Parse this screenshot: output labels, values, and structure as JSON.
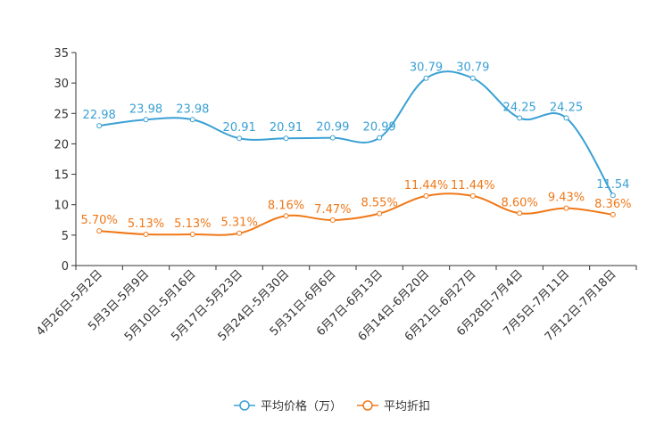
{
  "chart_data": {
    "type": "line",
    "categories": [
      "4月26日-5月2日",
      "5月3日-5月9日",
      "5月10日-5月16日",
      "5月17日-5月23日",
      "5月24日-5月30日",
      "5月31日-6月6日",
      "6月7日-6月13日",
      "6月14日-6月20日",
      "6月21日-6月27日",
      "6月28日-7月4日",
      "7月5日-7月11日",
      "7月12日-7月18日"
    ],
    "ylim": [
      0,
      35
    ],
    "yticks": [
      0,
      5,
      10,
      15,
      20,
      25,
      30,
      35
    ],
    "series": [
      {
        "name": "平均价格（万）",
        "color": "#3aa0d4",
        "values": [
          22.98,
          23.98,
          23.98,
          20.91,
          20.91,
          20.99,
          20.99,
          30.79,
          30.79,
          24.25,
          24.25,
          11.54
        ],
        "labels": [
          "22.98",
          "23.98",
          "23.98",
          "20.91",
          "20.91",
          "20.99",
          "20.99",
          "30.79",
          "30.79",
          "24.25",
          "24.25",
          "11.54"
        ]
      },
      {
        "name": "平均折扣",
        "color": "#f07818",
        "values": [
          5.7,
          5.13,
          5.13,
          5.31,
          8.16,
          7.47,
          8.55,
          11.44,
          11.44,
          8.6,
          9.43,
          8.36
        ],
        "labels": [
          "5.70%",
          "5.13%",
          "5.13%",
          "5.31%",
          "8.16%",
          "7.47%",
          "8.55%",
          "11.44%",
          "11.44%",
          "8.60%",
          "9.43%",
          "8.36%"
        ]
      }
    ]
  }
}
